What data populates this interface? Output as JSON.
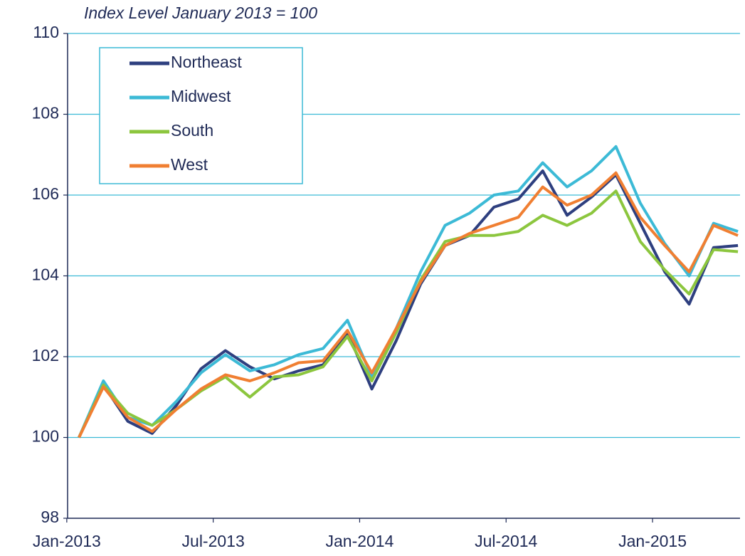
{
  "chart_data": {
    "type": "line",
    "subtitle": "Index Level January 2013 = 100",
    "categories": [
      "Jan-2013",
      null,
      null,
      null,
      null,
      null,
      "Jul-2013",
      null,
      null,
      null,
      null,
      null,
      "Jan-2014",
      null,
      null,
      null,
      null,
      null,
      "Jul-2014",
      null,
      null,
      null,
      null,
      null,
      "Jan-2015",
      null,
      null,
      null
    ],
    "series": [
      {
        "name": "Northeast",
        "color": "#2e3f7f",
        "values": [
          100,
          101.3,
          100.4,
          100.1,
          100.8,
          101.7,
          102.15,
          101.75,
          101.45,
          101.65,
          101.8,
          102.6,
          101.2,
          102.4,
          103.8,
          104.75,
          105.0,
          105.7,
          105.9,
          106.6,
          105.5,
          105.95,
          106.5,
          105.3,
          104.1,
          103.3,
          104.7,
          104.75
        ]
      },
      {
        "name": "Midwest",
        "color": "#3cbad6",
        "values": [
          100,
          101.4,
          100.5,
          100.3,
          100.9,
          101.6,
          102.05,
          101.65,
          101.8,
          102.05,
          102.2,
          102.9,
          101.5,
          102.7,
          104.1,
          105.25,
          105.55,
          106.0,
          106.1,
          106.8,
          106.2,
          106.6,
          107.2,
          105.8,
          104.8,
          104.0,
          105.3,
          105.1
        ]
      },
      {
        "name": "South",
        "color": "#8cc63e",
        "values": [
          100,
          101.3,
          100.6,
          100.3,
          100.7,
          101.15,
          101.5,
          101.0,
          101.5,
          101.55,
          101.75,
          102.5,
          101.4,
          102.6,
          103.9,
          104.85,
          105.0,
          105.0,
          105.1,
          105.5,
          105.25,
          105.55,
          106.1,
          104.85,
          104.15,
          103.55,
          104.65,
          104.6
        ]
      },
      {
        "name": "West",
        "color": "#f07f32",
        "values": [
          100,
          101.25,
          100.5,
          100.15,
          100.7,
          101.2,
          101.55,
          101.4,
          101.6,
          101.85,
          101.9,
          102.65,
          101.6,
          102.7,
          103.85,
          104.75,
          105.05,
          105.25,
          105.45,
          106.2,
          105.75,
          106.0,
          106.55,
          105.45,
          104.75,
          104.1,
          105.25,
          105.0
        ]
      }
    ],
    "ylim": [
      98,
      110
    ],
    "yticks": [
      98,
      100,
      102,
      104,
      106,
      108,
      110
    ],
    "grid": true,
    "legend": "upper left"
  }
}
